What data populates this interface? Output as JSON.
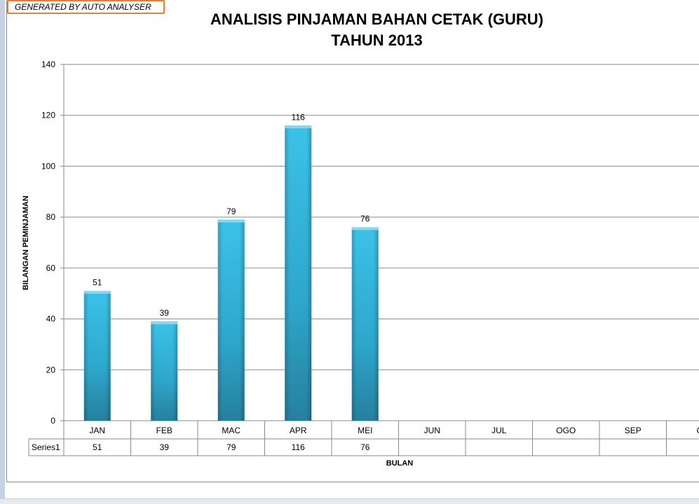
{
  "badge": "GENERATED BY AUTO ANALYSER",
  "chart_data": {
    "type": "bar",
    "title_line1": "ANALISIS PINJAMAN BAHAN CETAK (GURU)",
    "title_line2": "TAHUN 2013",
    "xlabel": "BULAN",
    "ylabel": "BILANGAN PEMINJAMAN",
    "categories": [
      "JAN",
      "FEB",
      "MAC",
      "APR",
      "MEI",
      "JUN",
      "JUL",
      "OGO",
      "SEP",
      "O"
    ],
    "series": [
      {
        "name": "Series1",
        "values": [
          51,
          39,
          79,
          116,
          76,
          null,
          null,
          null,
          null,
          null
        ]
      }
    ],
    "ylim": [
      0,
      140
    ],
    "yticks": [
      0,
      20,
      40,
      60,
      80,
      100,
      120,
      140
    ],
    "grid": true,
    "data_table": true,
    "bar_color": "#2fb2db"
  }
}
